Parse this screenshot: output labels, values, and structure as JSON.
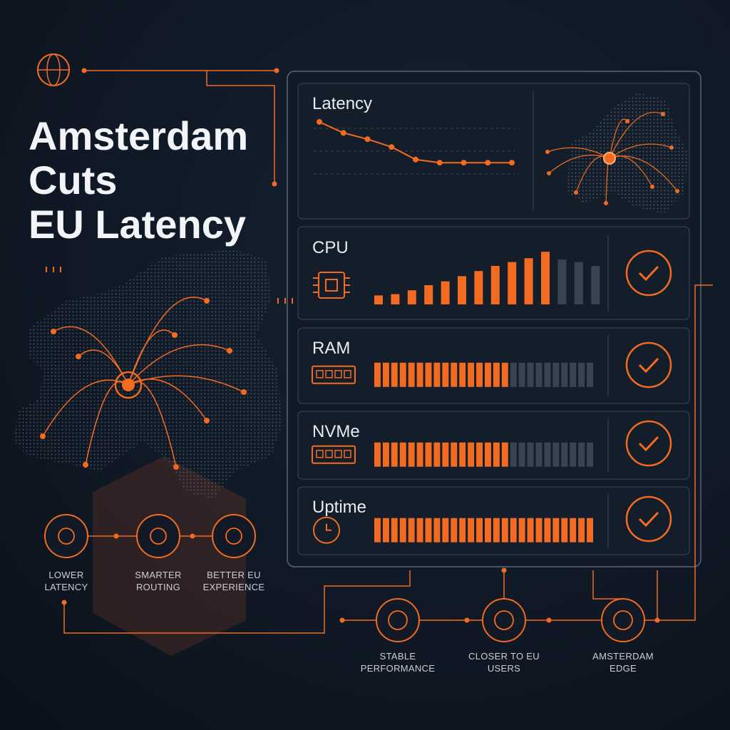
{
  "title_lines": [
    "Amsterdam",
    "Cuts",
    "EU Latency"
  ],
  "latency": {
    "label": "Latency",
    "values": [
      90,
      76,
      68,
      58,
      42,
      38,
      38,
      38,
      38
    ],
    "ylim": [
      0,
      100
    ]
  },
  "cpu": {
    "label": "CPU",
    "values": [
      14,
      16,
      22,
      30,
      36,
      44,
      52,
      60,
      66,
      72,
      82,
      70,
      66,
      60
    ],
    "active_count": 11,
    "active_color": "#f26b21",
    "idle_color": "#3a4350"
  },
  "meters": [
    {
      "label": "RAM",
      "filled": 16,
      "segments": 26
    },
    {
      "label": "NVMe",
      "filled": 16,
      "segments": 26
    },
    {
      "label": "Uptime",
      "filled": 26,
      "segments": 26
    }
  ],
  "features_left": [
    "LOWER LATENCY",
    "SMARTER ROUTING",
    "BETTER EU EXPERIENCE"
  ],
  "features_right": [
    "STABLE PERFORMANCE",
    "CLOSER TO EU USERS",
    "AMSTERDAM EDGE"
  ]
}
